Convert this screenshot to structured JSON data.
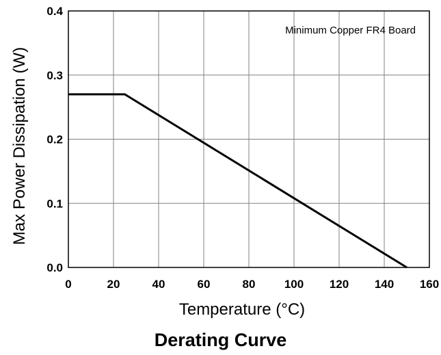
{
  "caption": "Derating Curve",
  "chart_data": {
    "type": "line",
    "title": "",
    "xlabel": "Temperature (°C)",
    "ylabel": "Max Power Dissipation (W)",
    "xlim": [
      0,
      160
    ],
    "ylim": [
      0.0,
      0.4
    ],
    "x_ticks": [
      "0",
      "20",
      "40",
      "60",
      "80",
      "100",
      "120",
      "140",
      "160"
    ],
    "y_ticks": [
      "0.0",
      "0.1",
      "0.2",
      "0.3",
      "0.4"
    ],
    "grid": true,
    "annotation": "Minimum Copper FR4 Board",
    "series": [
      {
        "x": [
          0,
          25,
          150
        ],
        "y": [
          0.27,
          0.27,
          0.0
        ]
      }
    ],
    "colors": {
      "line": "#000000",
      "grid": "#808080",
      "frame": "#000000"
    }
  }
}
